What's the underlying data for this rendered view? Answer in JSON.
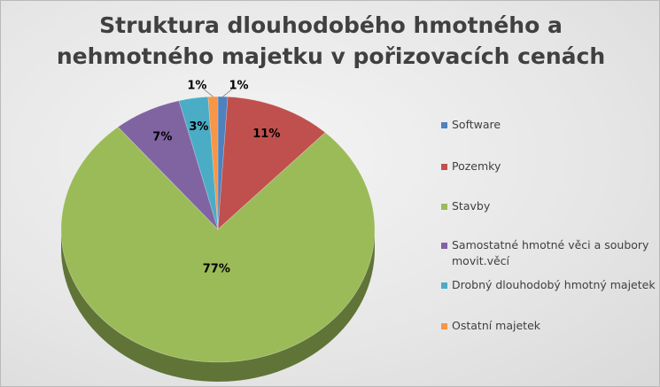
{
  "chart_data": {
    "type": "pie",
    "title_lines": [
      "Struktura dlouhodobého hmotného a",
      "nehmotného majetku v pořizovacích cenách"
    ],
    "legend_position": "right",
    "slices": [
      {
        "name": "Software",
        "value": 1,
        "label": "1%",
        "color": "#4f81bd"
      },
      {
        "name": "Pozemky",
        "value": 11,
        "label": "11%",
        "color": "#c0504d"
      },
      {
        "name": "Stavby",
        "value": 77,
        "label": "77%",
        "color": "#9bbb59"
      },
      {
        "name": "Samostatné hmotné věci a soubory movit.věcí",
        "value": 7,
        "label": "7%",
        "color": "#8064a2"
      },
      {
        "name": "Drobný dlouhodobý hmotný majetek",
        "value": 3,
        "label": "3%",
        "color": "#4bacc6"
      },
      {
        "name": "Ostatní majetek",
        "value": 1,
        "label": "1%",
        "color": "#f79646"
      }
    ]
  }
}
